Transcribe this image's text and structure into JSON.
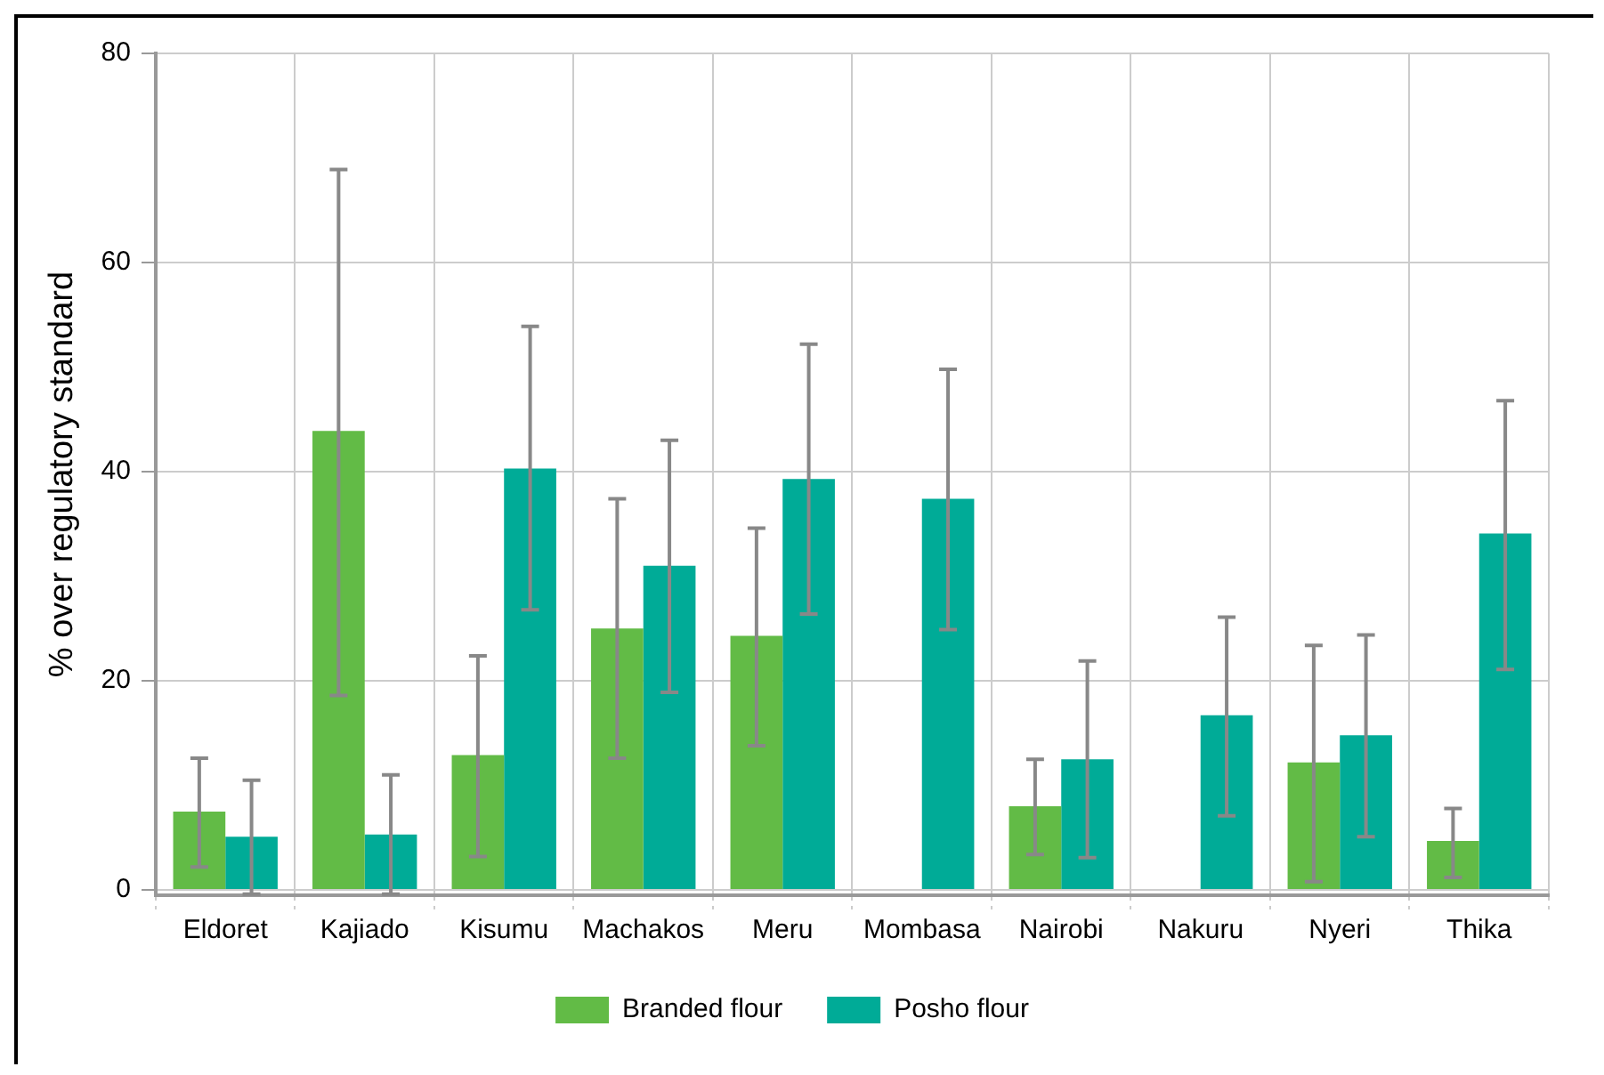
{
  "chart_data": {
    "type": "bar",
    "ylabel": "% over regulatory standard",
    "categories": [
      "Eldoret",
      "Kajiado",
      "Kisumu",
      "Machakos",
      "Meru",
      "Mombasa",
      "Nairobi",
      "Nakuru",
      "Nyeri",
      "Thika"
    ],
    "series": [
      {
        "name": "Branded flour",
        "color": "#62bb46",
        "values": [
          7.5,
          43.9,
          12.9,
          25,
          24.3,
          null,
          8,
          null,
          12.2,
          4.7
        ],
        "errors": [
          [
            2.2,
            12.6
          ],
          [
            18.6,
            68.9
          ],
          [
            3.2,
            22.4
          ],
          [
            12.6,
            37.4
          ],
          [
            13.8,
            34.6
          ],
          null,
          [
            3.4,
            12.5
          ],
          null,
          [
            0.8,
            23.4
          ],
          [
            1.2,
            7.8
          ]
        ]
      },
      {
        "name": "Posho flour",
        "color": "#00ab97",
        "values": [
          5.1,
          5.3,
          40.3,
          31,
          39.3,
          37.4,
          12.5,
          16.7,
          14.8,
          34.1
        ],
        "errors": [
          [
            -0.4,
            10.5
          ],
          [
            -0.4,
            11
          ],
          [
            26.8,
            53.9
          ],
          [
            18.9,
            43
          ],
          [
            26.4,
            52.2
          ],
          [
            24.9,
            49.8
          ],
          [
            3.1,
            21.9
          ],
          [
            7.1,
            26.1
          ],
          [
            5.1,
            24.4
          ],
          [
            21.1,
            46.8
          ]
        ]
      }
    ],
    "ylim": [
      -0.5,
      80
    ],
    "yticks": [
      0,
      20,
      40,
      60,
      80
    ],
    "grid": true,
    "legend": "bottom"
  }
}
